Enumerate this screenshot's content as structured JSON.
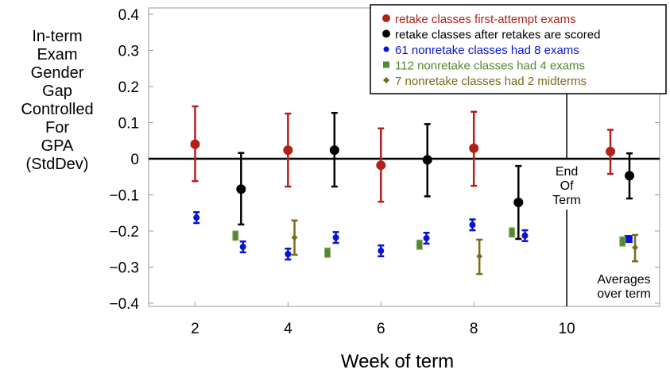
{
  "chart_data": {
    "type": "scatter",
    "xlabel": "Week of term",
    "ylabel_lines": [
      "In-term",
      "Exam",
      "Gender",
      "Gap",
      "Controlled",
      "For",
      "GPA",
      "(StdDev)"
    ],
    "xlim": [
      1,
      12
    ],
    "ylim": [
      -0.4,
      0.4
    ],
    "x_ticks": [
      2,
      4,
      6,
      8,
      10
    ],
    "y_ticks": [
      0.4,
      0.3,
      0.2,
      0.1,
      0,
      -0.1,
      -0.2,
      -0.3,
      -0.4
    ],
    "y_tick_labels": [
      "0.4",
      "0.3",
      "0.2",
      "0.1",
      "0",
      "−0.1",
      "−0.2",
      "−0.3",
      "−0.4"
    ],
    "grid": false,
    "legend_position": "top-right",
    "annotations": {
      "end_of_term": [
        "End",
        "Of",
        "Term"
      ],
      "averages": [
        "Averages",
        "over term"
      ]
    },
    "reference_lines": {
      "horizontal_y": 0,
      "vertical_x": 10
    },
    "series": [
      {
        "name": "retake classes first-attempt exams",
        "color": "#b2201a",
        "marker": "circle",
        "points": [
          {
            "x": 2,
            "y": 0.04,
            "lo": -0.062,
            "hi": 0.145
          },
          {
            "x": 4,
            "y": 0.024,
            "lo": -0.077,
            "hi": 0.125
          },
          {
            "x": 6,
            "y": -0.018,
            "lo": -0.119,
            "hi": 0.084
          },
          {
            "x": 8,
            "y": 0.029,
            "lo": -0.075,
            "hi": 0.13
          },
          {
            "x": 10.94,
            "y": 0.02,
            "lo": -0.042,
            "hi": 0.08
          }
        ]
      },
      {
        "name": "retake classes after retakes are scored",
        "color": "#000000",
        "marker": "circle",
        "points": [
          {
            "x": 2.99,
            "y": -0.084,
            "lo": -0.182,
            "hi": 0.016
          },
          {
            "x": 5,
            "y": 0.024,
            "lo": -0.077,
            "hi": 0.127
          },
          {
            "x": 7,
            "y": -0.003,
            "lo": -0.104,
            "hi": 0.096
          },
          {
            "x": 8.96,
            "y": -0.121,
            "lo": -0.222,
            "hi": -0.02
          },
          {
            "x": 11.35,
            "y": -0.047,
            "lo": -0.11,
            "hi": 0.015
          }
        ]
      },
      {
        "name": "61 nonretake classes had 8 exams",
        "color": "#0a14d0",
        "marker": "diamond-small",
        "points": [
          {
            "x": 2.03,
            "y": -0.163,
            "lo": -0.178,
            "hi": -0.148
          },
          {
            "x": 3.03,
            "y": -0.244,
            "lo": -0.259,
            "hi": -0.229
          },
          {
            "x": 4,
            "y": -0.264,
            "lo": -0.279,
            "hi": -0.249
          },
          {
            "x": 5.03,
            "y": -0.218,
            "lo": -0.233,
            "hi": -0.203
          },
          {
            "x": 6,
            "y": -0.255,
            "lo": -0.27,
            "hi": -0.24
          },
          {
            "x": 6.98,
            "y": -0.22,
            "lo": -0.235,
            "hi": -0.205
          },
          {
            "x": 7.97,
            "y": -0.183,
            "lo": -0.198,
            "hi": -0.168
          },
          {
            "x": 9.1,
            "y": -0.213,
            "lo": -0.228,
            "hi": -0.198
          },
          {
            "x": 11.33,
            "y": -0.222
          }
        ]
      },
      {
        "name": "112 nonretake classes had 4 exams",
        "color": "#4f8a2c",
        "marker": "square",
        "points": [
          {
            "x": 2.87,
            "y": -0.213
          },
          {
            "x": 4.85,
            "y": -0.26
          },
          {
            "x": 6.83,
            "y": -0.238
          },
          {
            "x": 8.82,
            "y": -0.204
          },
          {
            "x": 11.2,
            "y": -0.229
          }
        ]
      },
      {
        "name": "7 nonretake classes had 2 midterms",
        "color": "#7a6b1e",
        "marker": "diamond",
        "points": [
          {
            "x": 4.14,
            "y": -0.218,
            "lo": -0.266,
            "hi": -0.171
          },
          {
            "x": 8.12,
            "y": -0.27,
            "lo": -0.319,
            "hi": -0.224
          },
          {
            "x": 11.47,
            "y": -0.246,
            "lo": -0.284,
            "hi": -0.211
          }
        ]
      }
    ]
  }
}
